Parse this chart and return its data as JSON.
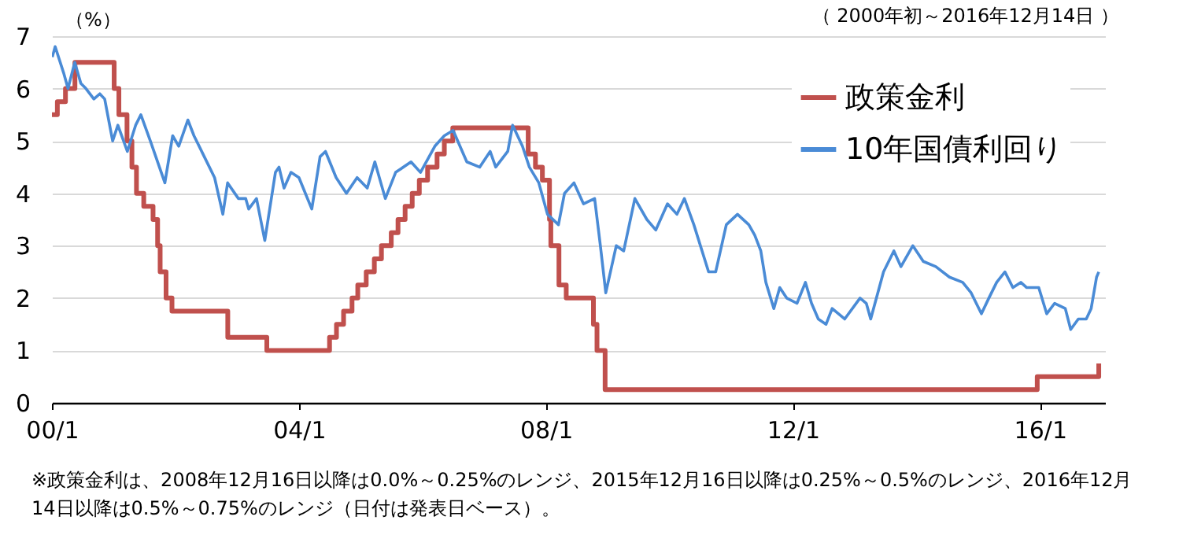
{
  "chart_data": {
    "type": "line",
    "ylabel": "（%）",
    "annotations": [
      "（ 2000年初～2016年12月14日 ）",
      "※政策金利は、2008年12月16日以降は0.0%～0.25%のレンジ、2015年12月16日以降は0.25%～0.5%のレンジ、2016年12月14日以降は0.5%～0.75%のレンジ（日付は発表日ベース）。"
    ],
    "xlim": [
      "2000-01-01",
      "2017-01-20"
    ],
    "xticks": [
      {
        "value": "2000-01-01",
        "label": "00/1"
      },
      {
        "value": "2004-01-01",
        "label": "04/1"
      },
      {
        "value": "2008-01-01",
        "label": "08/1"
      },
      {
        "value": "2012-01-01",
        "label": "12/1"
      },
      {
        "value": "2016-01-01",
        "label": "16/1"
      }
    ],
    "ylim": [
      0,
      7
    ],
    "yticks": [
      0,
      1,
      2,
      3,
      4,
      5,
      6,
      7
    ],
    "grid": "y",
    "legend": "top right",
    "series": [
      {
        "name": "政策金利",
        "type": "step",
        "color": "#c0504d",
        "x": [
          "2000-01-01",
          "2000-02-02",
          "2000-03-21",
          "2000-05-16",
          "2001-01-03",
          "2001-01-31",
          "2001-03-20",
          "2001-04-18",
          "2001-05-15",
          "2001-06-27",
          "2001-08-21",
          "2001-09-17",
          "2001-10-02",
          "2001-11-06",
          "2001-12-11",
          "2002-11-06",
          "2003-06-25",
          "2004-06-30",
          "2004-08-10",
          "2004-09-21",
          "2004-11-10",
          "2004-12-14",
          "2005-02-02",
          "2005-03-22",
          "2005-05-03",
          "2005-06-30",
          "2005-08-09",
          "2005-09-20",
          "2005-11-01",
          "2005-12-13",
          "2006-01-31",
          "2006-03-28",
          "2006-05-10",
          "2006-06-29",
          "2007-09-18",
          "2007-10-31",
          "2007-12-11",
          "2008-01-22",
          "2008-01-30",
          "2008-03-18",
          "2008-04-30",
          "2008-10-08",
          "2008-10-29",
          "2008-12-16",
          "2015-12-16",
          "2016-12-14"
        ],
        "values": [
          5.5,
          5.75,
          6,
          6.5,
          6,
          5.5,
          5,
          4.5,
          4,
          3.75,
          3.5,
          3,
          2.5,
          2,
          1.75,
          1.25,
          1,
          1.25,
          1.5,
          1.75,
          2,
          2.25,
          2.5,
          2.75,
          3,
          3.25,
          3.5,
          3.75,
          4,
          4.25,
          4.5,
          4.75,
          5,
          5.25,
          4.75,
          4.5,
          4.25,
          3.5,
          3,
          2.25,
          2,
          1.5,
          1,
          0.25,
          0.5,
          0.75
        ]
      },
      {
        "name": "10年国債利回り",
        "type": "line",
        "color": "#4a8bd6",
        "x": [
          "2000-01-03",
          "2000-01-20",
          "2000-03-10",
          "2000-04-05",
          "2000-05-15",
          "2000-06-20",
          "2000-07-20",
          "2000-09-05",
          "2000-10-10",
          "2000-11-08",
          "2000-12-25",
          "2001-01-25",
          "2001-03-22",
          "2001-05-10",
          "2001-06-10",
          "2001-08-05",
          "2001-10-30",
          "2001-12-15",
          "2002-01-20",
          "2002-03-15",
          "2002-04-20",
          "2002-06-20",
          "2002-08-20",
          "2002-10-08",
          "2002-11-05",
          "2003-01-08",
          "2003-02-20",
          "2003-03-10",
          "2003-04-25",
          "2003-06-13",
          "2003-08-15",
          "2003-09-05",
          "2003-10-05",
          "2003-11-15",
          "2004-01-01",
          "2004-03-17",
          "2004-05-05",
          "2004-06-06",
          "2004-08-08",
          "2004-10-08",
          "2004-12-10",
          "2005-02-08",
          "2005-03-25",
          "2005-05-26",
          "2005-07-26",
          "2005-10-25",
          "2005-12-20",
          "2006-03-15",
          "2006-05-10",
          "2006-07-01",
          "2006-09-20",
          "2006-12-05",
          "2007-02-05",
          "2007-03-10",
          "2007-05-20",
          "2007-06-18",
          "2007-08-15",
          "2007-09-25",
          "2007-11-20",
          "2008-01-10",
          "2008-03-15",
          "2008-04-20",
          "2008-06-15",
          "2008-08-10",
          "2008-10-15",
          "2008-11-18",
          "2008-12-20",
          "2009-02-20",
          "2009-04-05",
          "2009-06-10",
          "2009-08-20",
          "2009-10-12",
          "2009-12-20",
          "2010-02-14",
          "2010-03-30",
          "2010-05-25",
          "2010-08-20",
          "2010-10-01",
          "2010-12-03",
          "2011-02-07",
          "2011-04-15",
          "2011-05-20",
          "2011-06-25",
          "2011-07-25",
          "2011-09-10",
          "2011-10-15",
          "2011-11-25",
          "2012-01-25",
          "2012-03-15",
          "2012-04-20",
          "2012-05-30",
          "2012-07-15",
          "2012-08-20",
          "2012-11-02",
          "2013-02-01",
          "2013-03-10",
          "2013-04-05",
          "2013-06-20",
          "2013-08-20",
          "2013-10-01",
          "2013-12-10",
          "2014-02-10",
          "2014-04-25",
          "2014-07-15",
          "2014-10-01",
          "2014-11-20",
          "2015-01-20",
          "2015-03-05",
          "2015-04-20",
          "2015-06-08",
          "2015-07-25",
          "2015-09-10",
          "2015-10-15",
          "2015-12-25",
          "2016-02-10",
          "2016-03-28",
          "2016-05-30",
          "2016-07-01",
          "2016-08-15",
          "2016-10-01",
          "2016-10-30",
          "2016-12-01",
          "2016-12-14"
        ],
        "values": [
          6.6,
          6.8,
          6.3,
          6.0,
          6.5,
          6.1,
          6.0,
          5.8,
          5.9,
          5.8,
          5.0,
          5.3,
          4.8,
          5.3,
          5.5,
          5.0,
          4.2,
          5.1,
          4.9,
          5.4,
          5.1,
          4.7,
          4.3,
          3.6,
          4.2,
          3.9,
          3.9,
          3.7,
          3.9,
          3.1,
          4.4,
          4.5,
          4.1,
          4.4,
          4.3,
          3.7,
          4.7,
          4.8,
          4.3,
          4.0,
          4.3,
          4.1,
          4.6,
          3.9,
          4.4,
          4.6,
          4.4,
          4.9,
          5.1,
          5.2,
          4.6,
          4.5,
          4.8,
          4.5,
          4.8,
          5.3,
          4.9,
          4.5,
          4.2,
          3.6,
          3.4,
          4.0,
          4.2,
          3.8,
          3.9,
          3.0,
          2.1,
          3.0,
          2.9,
          3.9,
          3.5,
          3.3,
          3.8,
          3.6,
          3.9,
          3.4,
          2.5,
          2.5,
          3.4,
          3.6,
          3.4,
          3.2,
          2.9,
          2.3,
          1.8,
          2.2,
          2.0,
          1.9,
          2.3,
          1.9,
          1.6,
          1.5,
          1.8,
          1.6,
          2.0,
          1.9,
          1.6,
          2.5,
          2.9,
          2.6,
          3.0,
          2.7,
          2.6,
          2.4,
          2.3,
          2.1,
          1.7,
          2.0,
          2.3,
          2.5,
          2.2,
          2.3,
          2.2,
          2.2,
          1.7,
          1.9,
          1.8,
          1.4,
          1.6,
          1.6,
          1.8,
          2.4,
          2.5
        ]
      }
    ]
  }
}
